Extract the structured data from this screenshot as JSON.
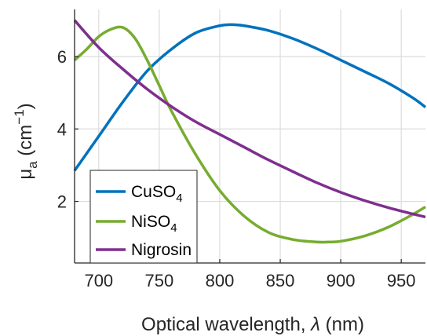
{
  "chart_data": {
    "type": "line",
    "xlabel": "Optical wavelength, λ (nm)",
    "xlabel_parts": {
      "text": "Optical wavelength, ",
      "symbol": "λ",
      "unit": " (nm)"
    },
    "ylabel": "μa (cm−1)",
    "ylabel_parts": {
      "mu": "μ",
      "sub": "a",
      "open": " (cm",
      "sup": "−1",
      "close": ")"
    },
    "xlim": [
      680,
      970
    ],
    "ylim": [
      0.3,
      7.3
    ],
    "xticks": [
      700,
      750,
      800,
      850,
      900,
      950
    ],
    "yticks": [
      2,
      4,
      6
    ],
    "grid": true,
    "legend_position": "bottom-left",
    "series": [
      {
        "name": "CuSO4",
        "name_base": "CuSO",
        "name_sub": "4",
        "color": "#0072BD",
        "x": [
          680,
          700,
          720,
          740,
          760,
          780,
          800,
          810,
          820,
          840,
          860,
          880,
          900,
          920,
          940,
          960,
          970
        ],
        "y": [
          2.85,
          3.8,
          4.75,
          5.6,
          6.2,
          6.65,
          6.85,
          6.88,
          6.85,
          6.72,
          6.5,
          6.22,
          5.9,
          5.58,
          5.25,
          4.85,
          4.6
        ]
      },
      {
        "name": "NiSO4",
        "name_base": "NiSO",
        "name_sub": "4",
        "color": "#77AC30",
        "x": [
          680,
          690,
          700,
          710,
          720,
          730,
          740,
          750,
          760,
          780,
          800,
          820,
          840,
          860,
          880,
          890,
          900,
          920,
          940,
          960,
          970
        ],
        "y": [
          5.9,
          6.2,
          6.55,
          6.75,
          6.8,
          6.5,
          5.9,
          5.2,
          4.5,
          3.3,
          2.3,
          1.6,
          1.15,
          0.95,
          0.88,
          0.88,
          0.9,
          1.05,
          1.3,
          1.65,
          1.85
        ]
      },
      {
        "name": "Nigrosin",
        "color": "#7E2F8E",
        "x": [
          680,
          700,
          720,
          740,
          760,
          780,
          800,
          820,
          840,
          860,
          880,
          900,
          920,
          940,
          960,
          970
        ],
        "y": [
          7.0,
          6.25,
          5.65,
          5.1,
          4.62,
          4.2,
          3.85,
          3.5,
          3.15,
          2.83,
          2.52,
          2.25,
          2.02,
          1.82,
          1.65,
          1.57
        ]
      }
    ]
  }
}
